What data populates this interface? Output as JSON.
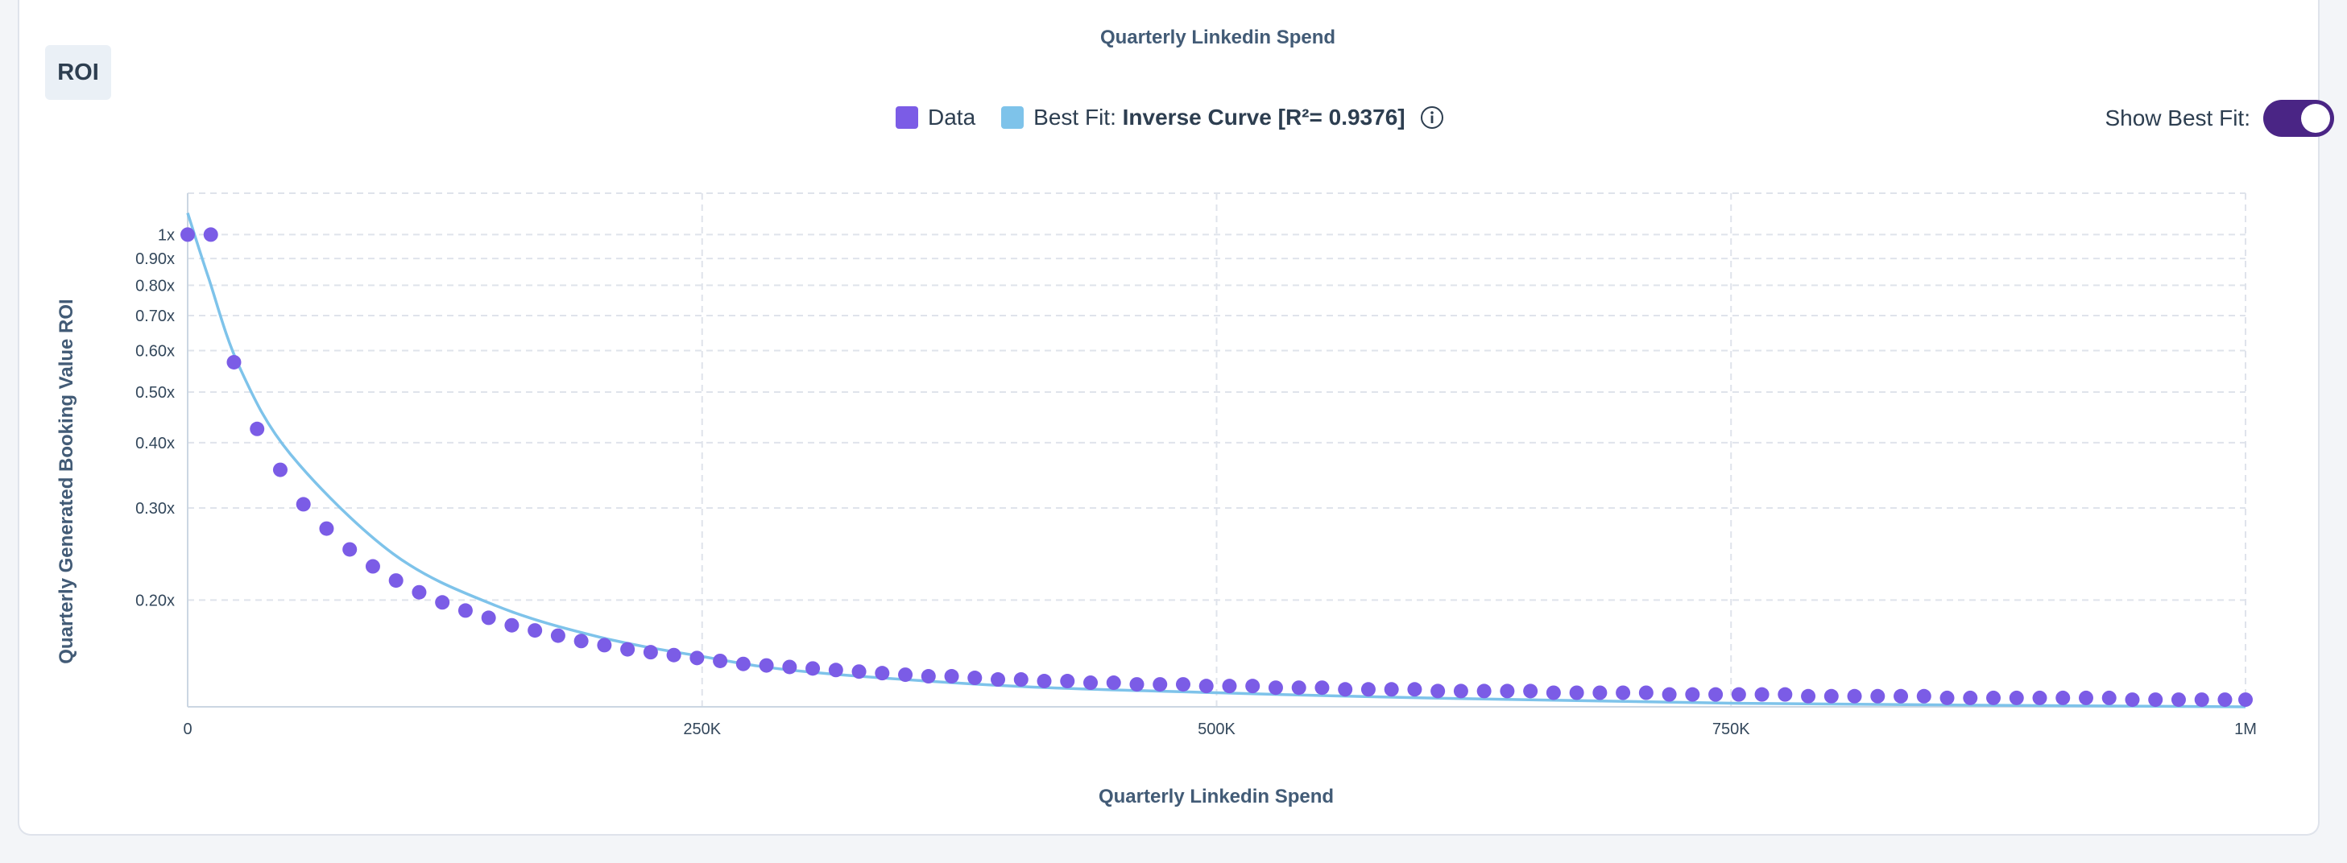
{
  "header": {
    "title": "Quarterly Linkedin Spend"
  },
  "tab": {
    "label": "ROI"
  },
  "legend": {
    "data_label": "Data",
    "fit_prefix": "Best Fit:",
    "fit_value": "Inverse Curve [R²= 0.9376]",
    "info_icon": "info-icon"
  },
  "toggle": {
    "label": "Show Best Fit:",
    "on": true
  },
  "colors": {
    "data": "#7b5ce6",
    "fit": "#7ec3ea",
    "grid": "#dfe3eb",
    "toggle": "#4a2585"
  },
  "chart_data": {
    "type": "scatter",
    "xlabel": "Quarterly Linkedin Spend",
    "ylabel": "Quarterly Generated Booking Value ROI",
    "x_scale": "linear",
    "y_scale": "log",
    "xlim": [
      0,
      1000000
    ],
    "ylim": [
      0.125,
      1.2
    ],
    "x_ticks": [
      0,
      250000,
      500000,
      750000,
      1000000
    ],
    "x_tick_labels": [
      "0",
      "250K",
      "500K",
      "750K",
      "1M"
    ],
    "y_ticks": [
      1,
      0.9,
      0.8,
      0.7,
      0.6,
      0.5,
      0.4,
      0.3,
      0.2
    ],
    "y_tick_labels": [
      "1x",
      "0.90x",
      "0.80x",
      "0.70x",
      "0.60x",
      "0.50x",
      "0.40x",
      "0.30x",
      "0.20x"
    ],
    "grid": true,
    "series": [
      {
        "name": "Data",
        "points": [
          [
            0,
            1.0
          ],
          [
            11250,
            1.0
          ],
          [
            22500,
            0.57
          ],
          [
            33750,
            0.425
          ],
          [
            45000,
            0.355
          ],
          [
            56250,
            0.305
          ],
          [
            67500,
            0.274
          ],
          [
            78750,
            0.25
          ],
          [
            90000,
            0.232
          ],
          [
            101250,
            0.218
          ],
          [
            112500,
            0.207
          ],
          [
            123750,
            0.198
          ],
          [
            135000,
            0.191
          ],
          [
            146250,
            0.185
          ],
          [
            157500,
            0.179
          ],
          [
            168750,
            0.175
          ],
          [
            180000,
            0.171
          ],
          [
            191250,
            0.167
          ],
          [
            202500,
            0.164
          ],
          [
            213750,
            0.161
          ],
          [
            225000,
            0.159
          ],
          [
            236250,
            0.157
          ],
          [
            247500,
            0.155
          ],
          [
            258750,
            0.153
          ],
          [
            270000,
            0.151
          ],
          [
            281250,
            0.15
          ],
          [
            292500,
            0.149
          ],
          [
            303750,
            0.148
          ],
          [
            315000,
            0.147
          ],
          [
            326250,
            0.146
          ],
          [
            337500,
            0.145
          ],
          [
            348750,
            0.144
          ],
          [
            360000,
            0.143
          ],
          [
            371250,
            0.143
          ],
          [
            382500,
            0.142
          ],
          [
            393750,
            0.141
          ],
          [
            405000,
            0.141
          ],
          [
            416250,
            0.14
          ],
          [
            427500,
            0.14
          ],
          [
            438750,
            0.139
          ],
          [
            450000,
            0.139
          ],
          [
            461250,
            0.138
          ],
          [
            472500,
            0.138
          ],
          [
            483750,
            0.138
          ],
          [
            495000,
            0.137
          ],
          [
            506250,
            0.137
          ],
          [
            517500,
            0.137
          ],
          [
            528750,
            0.136
          ],
          [
            540000,
            0.136
          ],
          [
            551250,
            0.136
          ],
          [
            562500,
            0.135
          ],
          [
            573750,
            0.135
          ],
          [
            585000,
            0.135
          ],
          [
            596250,
            0.135
          ],
          [
            607500,
            0.134
          ],
          [
            618750,
            0.134
          ],
          [
            630000,
            0.134
          ],
          [
            641250,
            0.134
          ],
          [
            652500,
            0.134
          ],
          [
            663750,
            0.133
          ],
          [
            675000,
            0.133
          ],
          [
            686250,
            0.133
          ],
          [
            697500,
            0.133
          ],
          [
            708750,
            0.133
          ],
          [
            720000,
            0.132
          ],
          [
            731250,
            0.132
          ],
          [
            742500,
            0.132
          ],
          [
            753750,
            0.132
          ],
          [
            765000,
            0.132
          ],
          [
            776250,
            0.132
          ],
          [
            787500,
            0.131
          ],
          [
            798750,
            0.131
          ],
          [
            810000,
            0.131
          ],
          [
            821250,
            0.131
          ],
          [
            832500,
            0.131
          ],
          [
            843750,
            0.131
          ],
          [
            855000,
            0.13
          ],
          [
            866250,
            0.13
          ],
          [
            877500,
            0.13
          ],
          [
            888750,
            0.13
          ],
          [
            900000,
            0.13
          ],
          [
            911250,
            0.13
          ],
          [
            922500,
            0.13
          ],
          [
            933750,
            0.13
          ],
          [
            945000,
            0.129
          ],
          [
            956250,
            0.129
          ],
          [
            967500,
            0.129
          ],
          [
            978750,
            0.129
          ],
          [
            990000,
            0.129
          ],
          [
            1000000,
            0.129
          ]
        ]
      },
      {
        "name": "Best Fit",
        "type": "line",
        "fit": "inverse",
        "points": [
          [
            0,
            1.1
          ],
          [
            10000,
            0.83
          ],
          [
            25000,
            0.56
          ],
          [
            50000,
            0.38
          ],
          [
            100000,
            0.245
          ],
          [
            150000,
            0.195
          ],
          [
            200000,
            0.17
          ],
          [
            250000,
            0.156
          ],
          [
            300000,
            0.146
          ],
          [
            400000,
            0.137
          ],
          [
            500000,
            0.133
          ],
          [
            600000,
            0.13
          ],
          [
            750000,
            0.127
          ],
          [
            1000000,
            0.125
          ]
        ]
      }
    ]
  }
}
